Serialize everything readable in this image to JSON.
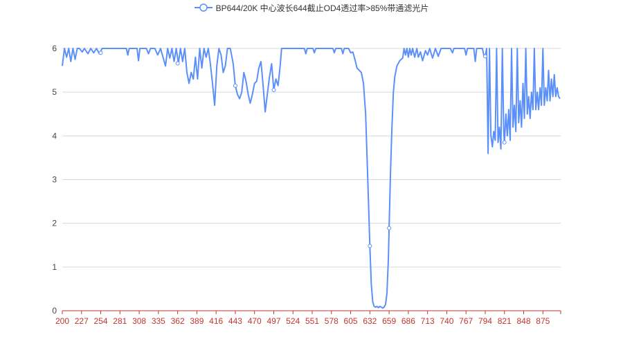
{
  "chart_data": {
    "type": "line",
    "title": "",
    "xlabel": "",
    "ylabel": "",
    "legend": {
      "position": "top-center"
    },
    "grid": {
      "y": true,
      "x": false
    },
    "ylim": [
      0,
      6
    ],
    "xlim": [
      200,
      900
    ],
    "x_tick_labels": [
      "200",
      "227",
      "254",
      "281",
      "308",
      "335",
      "362",
      "389",
      "416",
      "443",
      "470",
      "497",
      "524",
      "551",
      "578",
      "605",
      "632",
      "659",
      "686",
      "713",
      "740",
      "767",
      "794",
      "821",
      "848",
      "875"
    ],
    "y_tick_labels": [
      "0",
      "1",
      "2",
      "3",
      "4",
      "5",
      "6"
    ],
    "series": [
      {
        "name": "BP644/20K 中心波长644截止OD4透过率>85%带通滤光片",
        "color": "#5b8ff9",
        "markers": [
          [
            254,
            5.9
          ],
          [
            362,
            5.66
          ],
          [
            443,
            5.15
          ],
          [
            497,
            5.05
          ],
          [
            632,
            1.48
          ],
          [
            659,
            1.89
          ],
          [
            794,
            5.82
          ],
          [
            821,
            3.85
          ]
        ],
        "points": [
          [
            200,
            5.6
          ],
          [
            203,
            6.0
          ],
          [
            206,
            5.8
          ],
          [
            209,
            6.0
          ],
          [
            212,
            5.7
          ],
          [
            215,
            6.0
          ],
          [
            218,
            5.75
          ],
          [
            221,
            6.0
          ],
          [
            224,
            6.0
          ],
          [
            228,
            5.92
          ],
          [
            231,
            6.0
          ],
          [
            236,
            5.88
          ],
          [
            240,
            6.0
          ],
          [
            244,
            5.9
          ],
          [
            248,
            6.0
          ],
          [
            252,
            5.88
          ],
          [
            256,
            6.0
          ],
          [
            260,
            6.0
          ],
          [
            290,
            6.0
          ],
          [
            292,
            5.85
          ],
          [
            294,
            6.0
          ],
          [
            305,
            6.0
          ],
          [
            307,
            5.72
          ],
          [
            309,
            6.0
          ],
          [
            318,
            6.0
          ],
          [
            321,
            5.88
          ],
          [
            324,
            6.0
          ],
          [
            330,
            6.0
          ],
          [
            334,
            5.85
          ],
          [
            338,
            6.0
          ],
          [
            345,
            5.6
          ],
          [
            348,
            6.0
          ],
          [
            351,
            5.78
          ],
          [
            354,
            6.0
          ],
          [
            357,
            5.7
          ],
          [
            360,
            6.0
          ],
          [
            363,
            5.66
          ],
          [
            366,
            6.0
          ],
          [
            369,
            5.7
          ],
          [
            372,
            6.0
          ],
          [
            375,
            5.45
          ],
          [
            378,
            5.2
          ],
          [
            381,
            5.45
          ],
          [
            384,
            5.3
          ],
          [
            387,
            5.8
          ],
          [
            390,
            5.3
          ],
          [
            393,
            6.0
          ],
          [
            396,
            5.55
          ],
          [
            399,
            6.0
          ],
          [
            402,
            5.8
          ],
          [
            405,
            6.0
          ],
          [
            408,
            5.65
          ],
          [
            411,
            5.2
          ],
          [
            414,
            4.7
          ],
          [
            417,
            5.6
          ],
          [
            420,
            6.0
          ],
          [
            423,
            5.85
          ],
          [
            426,
            5.45
          ],
          [
            429,
            5.6
          ],
          [
            432,
            6.0
          ],
          [
            436,
            6.0
          ],
          [
            440,
            5.65
          ],
          [
            443,
            5.15
          ],
          [
            446,
            4.95
          ],
          [
            449,
            4.85
          ],
          [
            452,
            5.0
          ],
          [
            455,
            5.45
          ],
          [
            458,
            5.25
          ],
          [
            461,
            4.95
          ],
          [
            464,
            4.75
          ],
          [
            467,
            4.95
          ],
          [
            470,
            5.2
          ],
          [
            473,
            5.25
          ],
          [
            476,
            5.55
          ],
          [
            479,
            5.7
          ],
          [
            482,
            5.15
          ],
          [
            485,
            4.55
          ],
          [
            488,
            4.95
          ],
          [
            491,
            5.35
          ],
          [
            494,
            5.65
          ],
          [
            497,
            5.05
          ],
          [
            500,
            5.3
          ],
          [
            503,
            5.15
          ],
          [
            506,
            5.6
          ],
          [
            508,
            6.0
          ],
          [
            540,
            6.0
          ],
          [
            542,
            5.88
          ],
          [
            544,
            6.0
          ],
          [
            552,
            6.0
          ],
          [
            554,
            5.9
          ],
          [
            556,
            6.0
          ],
          [
            580,
            6.0
          ],
          [
            582,
            5.9
          ],
          [
            584,
            6.0
          ],
          [
            592,
            6.0
          ],
          [
            594,
            5.88
          ],
          [
            596,
            6.0
          ],
          [
            602,
            6.0
          ],
          [
            605,
            5.9
          ],
          [
            608,
            5.92
          ],
          [
            611,
            5.75
          ],
          [
            614,
            5.55
          ],
          [
            617,
            5.5
          ],
          [
            620,
            5.45
          ],
          [
            623,
            5.2
          ],
          [
            626,
            4.5
          ],
          [
            629,
            3.0
          ],
          [
            632,
            1.48
          ],
          [
            634,
            0.6
          ],
          [
            636,
            0.2
          ],
          [
            638,
            0.1
          ],
          [
            640,
            0.08
          ],
          [
            642,
            0.1
          ],
          [
            644,
            0.07
          ],
          [
            646,
            0.1
          ],
          [
            648,
            0.08
          ],
          [
            650,
            0.06
          ],
          [
            652,
            0.08
          ],
          [
            654,
            0.15
          ],
          [
            656,
            0.4
          ],
          [
            658,
            1.2
          ],
          [
            659,
            1.89
          ],
          [
            661,
            3.2
          ],
          [
            663,
            4.2
          ],
          [
            665,
            5.0
          ],
          [
            667,
            5.35
          ],
          [
            670,
            5.6
          ],
          [
            674,
            5.72
          ],
          [
            678,
            5.78
          ],
          [
            680,
            6.0
          ],
          [
            682,
            5.85
          ],
          [
            684,
            6.0
          ],
          [
            686,
            5.8
          ],
          [
            688,
            6.0
          ],
          [
            690,
            5.85
          ],
          [
            692,
            6.0
          ],
          [
            695,
            5.8
          ],
          [
            698,
            6.0
          ],
          [
            700,
            5.8
          ],
          [
            703,
            5.92
          ],
          [
            706,
            5.72
          ],
          [
            710,
            5.95
          ],
          [
            713,
            5.85
          ],
          [
            716,
            6.0
          ],
          [
            720,
            5.78
          ],
          [
            724,
            6.0
          ],
          [
            728,
            5.82
          ],
          [
            732,
            6.0
          ],
          [
            736,
            6.0
          ],
          [
            740,
            6.0
          ],
          [
            745,
            6.0
          ],
          [
            748,
            5.9
          ],
          [
            750,
            6.0
          ],
          [
            765,
            6.0
          ],
          [
            767,
            5.85
          ],
          [
            769,
            6.0
          ],
          [
            778,
            6.0
          ],
          [
            780,
            5.7
          ],
          [
            782,
            6.0
          ],
          [
            790,
            6.0
          ],
          [
            792,
            5.85
          ],
          [
            794,
            5.82
          ],
          [
            796,
            6.0
          ],
          [
            798,
            3.6
          ],
          [
            800,
            6.0
          ],
          [
            802,
            4.0
          ],
          [
            804,
            3.75
          ],
          [
            806,
            4.1
          ],
          [
            808,
            3.9
          ],
          [
            810,
            6.0
          ],
          [
            812,
            3.85
          ],
          [
            814,
            4.2
          ],
          [
            816,
            3.7
          ],
          [
            818,
            6.0
          ],
          [
            820,
            4.1
          ],
          [
            821,
            3.85
          ],
          [
            823,
            4.5
          ],
          [
            825,
            4.0
          ],
          [
            827,
            4.6
          ],
          [
            829,
            3.9
          ],
          [
            831,
            6.0
          ],
          [
            833,
            4.2
          ],
          [
            835,
            4.7
          ],
          [
            837,
            4.1
          ],
          [
            839,
            6.0
          ],
          [
            841,
            4.3
          ],
          [
            843,
            4.8
          ],
          [
            845,
            4.2
          ],
          [
            847,
            5.2
          ],
          [
            849,
            4.4
          ],
          [
            851,
            6.0
          ],
          [
            853,
            4.5
          ],
          [
            855,
            4.9
          ],
          [
            857,
            4.4
          ],
          [
            859,
            5.0
          ],
          [
            861,
            4.6
          ],
          [
            863,
            6.0
          ],
          [
            865,
            4.6
          ],
          [
            867,
            5.0
          ],
          [
            869,
            4.6
          ],
          [
            871,
            5.1
          ],
          [
            873,
            4.7
          ],
          [
            875,
            6.0
          ],
          [
            877,
            4.7
          ],
          [
            879,
            5.1
          ],
          [
            881,
            4.8
          ],
          [
            883,
            5.5
          ],
          [
            885,
            4.8
          ],
          [
            887,
            5.3
          ],
          [
            889,
            4.9
          ],
          [
            891,
            5.4
          ],
          [
            893,
            4.9
          ],
          [
            895,
            5.1
          ],
          [
            897,
            4.9
          ],
          [
            899,
            4.85
          ]
        ]
      }
    ]
  }
}
